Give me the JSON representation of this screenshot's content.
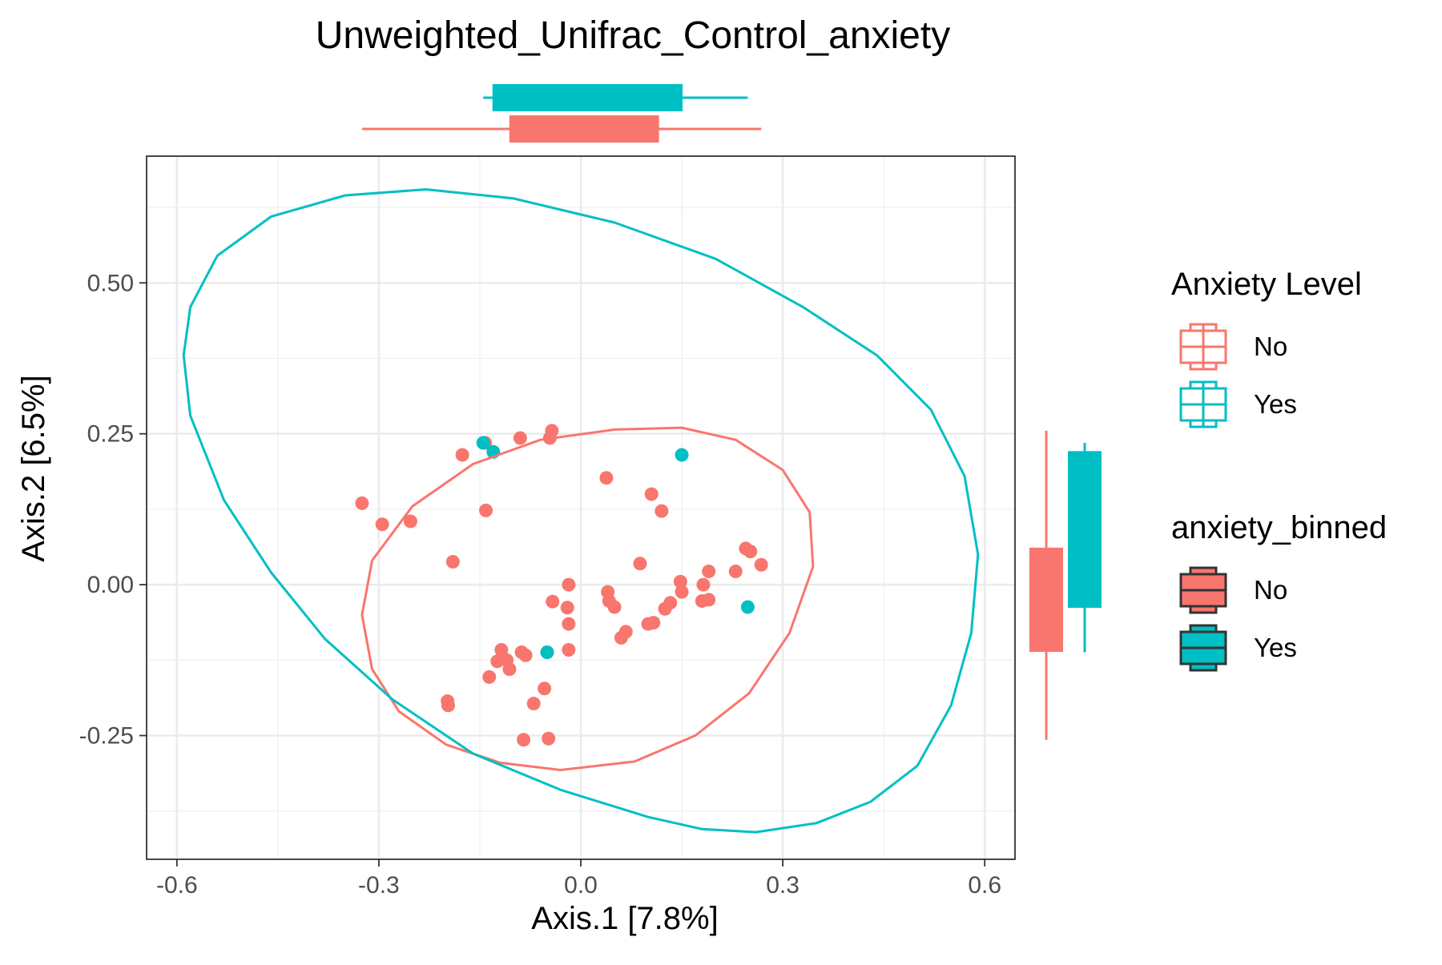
{
  "chart_data": {
    "type": "scatter",
    "title": "Unweighted_Unifrac_Control_anxiety",
    "xlabel": "Axis.1   [7.8%]",
    "ylabel": "Axis.2   [6.5%]",
    "xlim": [
      -0.645,
      0.645
    ],
    "ylim": [
      -0.455,
      0.71
    ],
    "x_ticks": [
      -0.6,
      -0.3,
      0.0,
      0.3,
      0.6
    ],
    "x_tick_labels": [
      "-0.6",
      "-0.3",
      "0.0",
      "0.3",
      "0.6"
    ],
    "y_ticks": [
      -0.25,
      0.0,
      0.25,
      0.5
    ],
    "y_tick_labels": [
      "-0.25",
      "0.00",
      "0.25",
      "0.50"
    ],
    "grid": true,
    "legend_position": "right",
    "colors": {
      "No": "#F8766D",
      "Yes": "#00BFC4"
    },
    "series": [
      {
        "name": "No",
        "color": "#F8766D",
        "points": [
          [
            -0.325,
            0.135
          ],
          [
            -0.295,
            0.1
          ],
          [
            -0.253,
            0.105
          ],
          [
            -0.19,
            0.038
          ],
          [
            -0.176,
            0.215
          ],
          [
            -0.142,
            0.235
          ],
          [
            -0.141,
            0.123
          ],
          [
            -0.09,
            0.243
          ],
          [
            -0.046,
            0.243
          ],
          [
            -0.043,
            0.255
          ],
          [
            0.038,
            0.177
          ],
          [
            0.105,
            0.15
          ],
          [
            0.12,
            0.122
          ],
          [
            -0.018,
            0.0
          ],
          [
            -0.042,
            -0.028
          ],
          [
            -0.02,
            -0.038
          ],
          [
            -0.018,
            -0.065
          ],
          [
            0.04,
            -0.012
          ],
          [
            0.042,
            -0.027
          ],
          [
            0.05,
            -0.037
          ],
          [
            0.088,
            0.035
          ],
          [
            0.06,
            -0.088
          ],
          [
            0.067,
            -0.078
          ],
          [
            0.1,
            -0.065
          ],
          [
            0.108,
            -0.063
          ],
          [
            0.125,
            -0.04
          ],
          [
            0.133,
            -0.03
          ],
          [
            0.148,
            0.005
          ],
          [
            0.15,
            -0.012
          ],
          [
            0.18,
            -0.027
          ],
          [
            0.182,
            -0.0
          ],
          [
            0.19,
            -0.025
          ],
          [
            0.19,
            0.022
          ],
          [
            0.23,
            0.022
          ],
          [
            0.245,
            0.06
          ],
          [
            0.252,
            0.055
          ],
          [
            0.268,
            0.033
          ],
          [
            -0.018,
            -0.108
          ],
          [
            -0.05,
            -0.112
          ],
          [
            -0.082,
            -0.117
          ],
          [
            -0.088,
            -0.112
          ],
          [
            -0.118,
            -0.108
          ],
          [
            -0.106,
            -0.14
          ],
          [
            -0.11,
            -0.125
          ],
          [
            -0.124,
            -0.127
          ],
          [
            -0.136,
            -0.153
          ],
          [
            -0.054,
            -0.172
          ],
          [
            -0.07,
            -0.197
          ],
          [
            -0.198,
            -0.193
          ],
          [
            -0.197,
            -0.2
          ],
          [
            -0.085,
            -0.257
          ],
          [
            -0.048,
            -0.255
          ]
        ]
      },
      {
        "name": "Yes",
        "color": "#00BFC4",
        "points": [
          [
            -0.145,
            0.235
          ],
          [
            -0.13,
            0.22
          ],
          [
            0.15,
            0.215
          ],
          [
            -0.05,
            -0.112
          ],
          [
            0.248,
            -0.037
          ]
        ]
      }
    ],
    "ellipses": [
      {
        "series": "No",
        "points": [
          [
            -0.03,
            -0.307
          ],
          [
            0.08,
            -0.293
          ],
          [
            0.17,
            -0.25
          ],
          [
            0.25,
            -0.18
          ],
          [
            0.31,
            -0.08
          ],
          [
            0.345,
            0.03
          ],
          [
            0.34,
            0.12
          ],
          [
            0.3,
            0.19
          ],
          [
            0.23,
            0.24
          ],
          [
            0.15,
            0.26
          ],
          [
            0.05,
            0.257
          ],
          [
            -0.06,
            0.24
          ],
          [
            -0.16,
            0.2
          ],
          [
            -0.25,
            0.13
          ],
          [
            -0.31,
            0.04
          ],
          [
            -0.325,
            -0.05
          ],
          [
            -0.31,
            -0.14
          ],
          [
            -0.27,
            -0.21
          ],
          [
            -0.2,
            -0.265
          ],
          [
            -0.12,
            -0.295
          ]
        ]
      },
      {
        "series": "Yes",
        "points": [
          [
            0.26,
            -0.41
          ],
          [
            0.35,
            -0.395
          ],
          [
            0.43,
            -0.36
          ],
          [
            0.5,
            -0.3
          ],
          [
            0.55,
            -0.2
          ],
          [
            0.58,
            -0.08
          ],
          [
            0.59,
            0.05
          ],
          [
            0.57,
            0.18
          ],
          [
            0.52,
            0.29
          ],
          [
            0.44,
            0.38
          ],
          [
            0.33,
            0.46
          ],
          [
            0.2,
            0.54
          ],
          [
            0.05,
            0.6
          ],
          [
            -0.1,
            0.64
          ],
          [
            -0.23,
            0.655
          ],
          [
            -0.35,
            0.645
          ],
          [
            -0.46,
            0.61
          ],
          [
            -0.54,
            0.545
          ],
          [
            -0.58,
            0.46
          ],
          [
            -0.59,
            0.38
          ],
          [
            -0.58,
            0.28
          ],
          [
            -0.53,
            0.14
          ],
          [
            -0.46,
            0.02
          ],
          [
            -0.38,
            -0.09
          ],
          [
            -0.28,
            -0.19
          ],
          [
            -0.16,
            -0.28
          ],
          [
            -0.03,
            -0.34
          ],
          [
            0.1,
            -0.385
          ],
          [
            0.18,
            -0.405
          ]
        ]
      }
    ],
    "x_boxplots": [
      {
        "group": "Yes",
        "color": "#00BFC4",
        "min": -0.145,
        "q1": -0.13,
        "median": -0.05,
        "q3": 0.15,
        "max": 0.248
      },
      {
        "group": "No",
        "color": "#F8766D",
        "min": -0.325,
        "q1": -0.105,
        "median": 0.042,
        "q3": 0.115,
        "max": 0.268
      }
    ],
    "y_boxplots": [
      {
        "group": "No",
        "color": "#F8766D",
        "min": -0.257,
        "q1": -0.11,
        "median": -0.012,
        "q3": 0.06,
        "max": 0.255
      },
      {
        "group": "Yes",
        "color": "#00BFC4",
        "min": -0.112,
        "q1": -0.037,
        "median": 0.215,
        "q3": 0.22,
        "max": 0.235
      }
    ],
    "legends": [
      {
        "title": "Anxiety Level",
        "style": "outline",
        "items": [
          {
            "label": "No",
            "color": "#F8766D"
          },
          {
            "label": "Yes",
            "color": "#00BFC4"
          }
        ]
      },
      {
        "title": "anxiety_binned",
        "style": "filled",
        "items": [
          {
            "label": "No",
            "color": "#F8766D"
          },
          {
            "label": "Yes",
            "color": "#00BFC4"
          }
        ]
      }
    ]
  }
}
